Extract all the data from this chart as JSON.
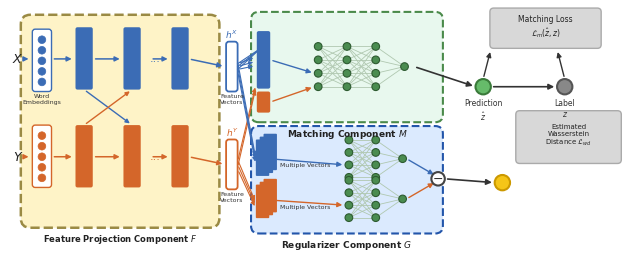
{
  "bg_color": "#ffffff",
  "feature_proj_bg": "#fef3c7",
  "matching_bg": "#e8f8ee",
  "regularizer_bg": "#dbeafe",
  "loss_box_bg": "#d1d5db",
  "blue": "#3b6cb5",
  "orange": "#d4662a",
  "green_node": "#4a8c50",
  "green_edge": "#2d5a30",
  "conn_color": "#b0c8b0",
  "title_fp": "Feature Projection Component $\\mathit{F}$",
  "title_m": "Matching Component $\\mathit{M}$",
  "title_g": "Regularizer Component $\\mathit{G}$",
  "label_x": "$X$",
  "label_y": "$Y$",
  "label_hx": "$h^X$",
  "label_hy": "$h^Y$",
  "label_word": "Word\nEmbeddings",
  "label_fv1": "Feature\nVectors",
  "label_fv2": "Feature\nVectors",
  "label_mv1": "Multiple Vectors",
  "label_mv2": "Multiple Vectors",
  "label_pred": "Prediction\n$\\hat{z}$",
  "label_label": "Label\n$z$",
  "label_matching_loss": "Matching Loss\n$\\mathcal{L}_m(\\hat{z},z)$",
  "label_wasserstein": "Estimated\nWasserstein\nDistance $\\mathcal{L}_{wd}$"
}
